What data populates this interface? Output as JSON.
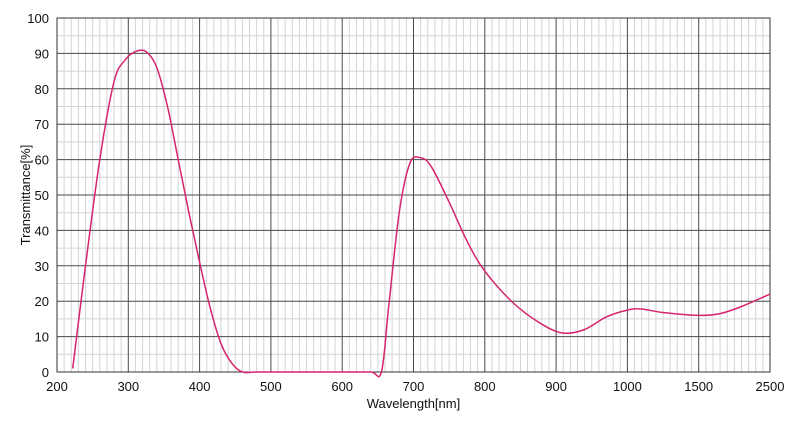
{
  "chart_data": {
    "type": "line",
    "xlabel": "Wavelength[nm]",
    "ylabel": "Transmittance[%]",
    "x_ticks": [
      "200",
      "300",
      "400",
      "500",
      "600",
      "700",
      "800",
      "900",
      "1000",
      "1500",
      "2500"
    ],
    "y_ticks": [
      "0",
      "10",
      "20",
      "30",
      "40",
      "50",
      "60",
      "70",
      "80",
      "90",
      "100"
    ],
    "ylim": [
      0,
      100
    ],
    "x_scale": "piecewise: linear 200-1000 nm, then 1000-1500 nm and 1500-2500 nm each span one tick interval",
    "grid": true,
    "minor_grid": true,
    "line_color": "#d6246e",
    "series": [
      {
        "name": "",
        "x": [
          222,
          240,
          260,
          280,
          295,
          310,
          325,
          340,
          355,
          370,
          385,
          400,
          415,
          430,
          445,
          460,
          480,
          520,
          560,
          600,
          640,
          655,
          665,
          680,
          695,
          710,
          725,
          750,
          775,
          800,
          840,
          880,
          910,
          940,
          970,
          1000,
          1100,
          1250,
          1500,
          1800,
          2100,
          2500
        ],
        "y": [
          1,
          30,
          60,
          82,
          88,
          90.5,
          90.5,
          86,
          75,
          60,
          45,
          31,
          18,
          8,
          2.5,
          0,
          0,
          0,
          0,
          0,
          0,
          0,
          18,
          45,
          59,
          60.5,
          58,
          48,
          37,
          28.5,
          19.5,
          13.5,
          11,
          12,
          15.5,
          17.5,
          17.8,
          16.8,
          16,
          16.5,
          18.5,
          22
        ]
      }
    ]
  }
}
